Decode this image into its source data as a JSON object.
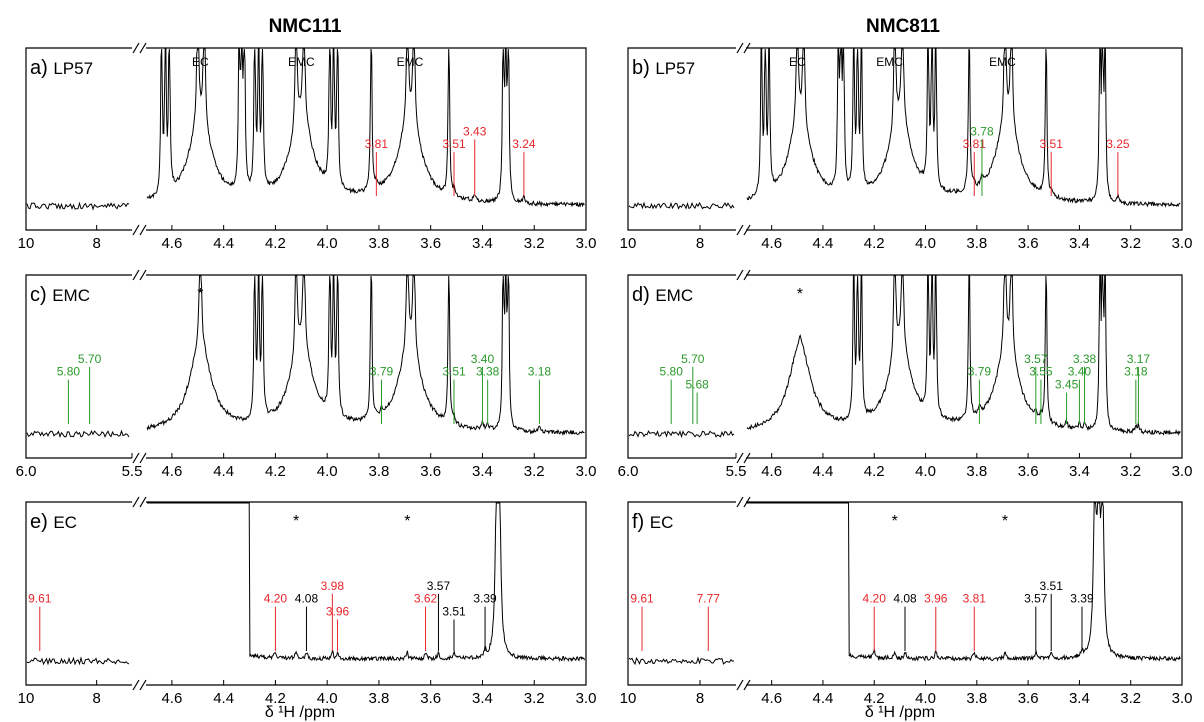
{
  "figure": {
    "columns": [
      "NMC111",
      "NMC811"
    ],
    "x_axis_title": "δ ¹H /ppm"
  },
  "colors": {
    "red": "#e8262b",
    "green": "#2a9a2a",
    "black": "#000000"
  },
  "chart_data": [
    {
      "id": "a",
      "panel_label": "a)",
      "sample": "LP57",
      "column": "NMC111",
      "type": "line",
      "x_left": {
        "range": [
          10,
          7
        ],
        "ticks": [
          "10",
          "8"
        ]
      },
      "x_right": {
        "range": [
          4.7,
          3.0
        ],
        "ticks": [
          "4.6",
          "4.4",
          "4.2",
          "4.0",
          "3.8",
          "3.6",
          "3.4",
          "3.2",
          "3.0"
        ]
      },
      "y": "intensity (clipped)",
      "big_peaks": [
        4.64,
        4.625,
        4.61,
        4.5,
        4.475,
        4.34,
        4.33,
        4.32,
        4.28,
        4.265,
        4.25,
        4.12,
        4.09,
        3.99,
        3.975,
        3.96,
        3.83,
        3.69,
        3.665,
        3.53,
        3.32,
        3.31,
        3.3
      ],
      "solvent_labels": [
        {
          "text": "EC",
          "x": 4.49
        },
        {
          "text": "EMC",
          "x": 4.1
        },
        {
          "text": "EMC",
          "x": 3.68
        }
      ],
      "peak_labels": [
        {
          "text": "3.81",
          "x": 3.81,
          "color": "red"
        },
        {
          "text": "3.51",
          "x": 3.51,
          "color": "red"
        },
        {
          "text": "3.43",
          "x": 3.43,
          "color": "red"
        },
        {
          "text": "3.24",
          "x": 3.24,
          "color": "red"
        }
      ],
      "stars": []
    },
    {
      "id": "b",
      "panel_label": "b)",
      "sample": "LP57",
      "column": "NMC811",
      "type": "line",
      "x_left": {
        "range": [
          10,
          7
        ],
        "ticks": [
          "10",
          "8"
        ]
      },
      "x_right": {
        "range": [
          4.7,
          3.0
        ],
        "ticks": [
          "4.6",
          "4.4",
          "4.2",
          "4.0",
          "3.8",
          "3.6",
          "3.4",
          "3.2",
          "3.0"
        ]
      },
      "y": "intensity (clipped)",
      "big_peaks": [
        4.64,
        4.625,
        4.61,
        4.5,
        4.475,
        4.34,
        4.33,
        4.32,
        4.28,
        4.265,
        4.25,
        4.12,
        4.09,
        3.99,
        3.975,
        3.96,
        3.83,
        3.69,
        3.665,
        3.53,
        3.32,
        3.31,
        3.3
      ],
      "solvent_labels": [
        {
          "text": "EC",
          "x": 4.5
        },
        {
          "text": "EMC",
          "x": 4.14
        },
        {
          "text": "EMC",
          "x": 3.7
        }
      ],
      "peak_labels": [
        {
          "text": "3.81",
          "x": 3.81,
          "color": "red"
        },
        {
          "text": "3.78",
          "x": 3.78,
          "color": "green"
        },
        {
          "text": "3.51",
          "x": 3.51,
          "color": "red"
        },
        {
          "text": "3.25",
          "x": 3.25,
          "color": "red"
        }
      ],
      "stars": []
    },
    {
      "id": "c",
      "panel_label": "c)",
      "sample": "EMC",
      "column": "NMC111",
      "type": "line",
      "x_left": {
        "range": [
          6.0,
          5.5
        ],
        "ticks": [
          "6.0",
          "5.5"
        ]
      },
      "x_right": {
        "range": [
          4.7,
          3.0
        ],
        "ticks": [
          "4.6",
          "4.4",
          "4.2",
          "4.0",
          "3.8",
          "3.6",
          "3.4",
          "3.2",
          "3.0"
        ]
      },
      "y": "intensity (clipped)",
      "big_peaks": [
        4.49,
        4.28,
        4.265,
        4.25,
        4.12,
        4.09,
        3.99,
        3.975,
        3.96,
        3.83,
        3.69,
        3.665,
        3.53,
        3.32,
        3.31,
        3.3
      ],
      "solvent_labels": [],
      "peak_labels": [
        {
          "text": "5.80",
          "x": 5.8,
          "color": "green"
        },
        {
          "text": "5.70",
          "x": 5.7,
          "color": "green"
        },
        {
          "text": "3.79",
          "x": 3.79,
          "color": "green"
        },
        {
          "text": "3.51",
          "x": 3.51,
          "color": "green"
        },
        {
          "text": "3.38",
          "x": 3.38,
          "color": "green"
        },
        {
          "text": "3.40",
          "x": 3.4,
          "color": "green"
        },
        {
          "text": "3.18",
          "x": 3.18,
          "color": "green"
        }
      ],
      "stars": [
        {
          "text": "*",
          "x": 4.49
        }
      ]
    },
    {
      "id": "d",
      "panel_label": "d)",
      "sample": "EMC",
      "column": "NMC811",
      "type": "line",
      "x_left": {
        "range": [
          6.0,
          5.5
        ],
        "ticks": [
          "6.0",
          "5.5"
        ]
      },
      "x_right": {
        "range": [
          4.7,
          3.0
        ],
        "ticks": [
          "4.6",
          "4.4",
          "4.2",
          "4.0",
          "3.8",
          "3.6",
          "3.4",
          "3.2",
          "3.0"
        ]
      },
      "y": "intensity (clipped)",
      "big_peaks": [
        4.28,
        4.265,
        4.25,
        4.12,
        4.09,
        3.99,
        3.975,
        3.96,
        3.83,
        3.69,
        3.665,
        3.53,
        3.32,
        3.31,
        3.3
      ],
      "solvent_labels": [],
      "peak_labels": [
        {
          "text": "5.80",
          "x": 5.8,
          "color": "green"
        },
        {
          "text": "5.70",
          "x": 5.7,
          "color": "green"
        },
        {
          "text": "5.68",
          "x": 5.68,
          "color": "green"
        },
        {
          "text": "3.79",
          "x": 3.79,
          "color": "green"
        },
        {
          "text": "3.55",
          "x": 3.55,
          "color": "green"
        },
        {
          "text": "3.57",
          "x": 3.57,
          "color": "green"
        },
        {
          "text": "3.40",
          "x": 3.4,
          "color": "green"
        },
        {
          "text": "3.38",
          "x": 3.38,
          "color": "green"
        },
        {
          "text": "3.45",
          "x": 3.45,
          "color": "green"
        },
        {
          "text": "3.18",
          "x": 3.18,
          "color": "green"
        },
        {
          "text": "3.17",
          "x": 3.17,
          "color": "green"
        }
      ],
      "stars": [
        {
          "text": "*",
          "x": 4.49
        }
      ]
    },
    {
      "id": "e",
      "panel_label": "e)",
      "sample": "EC",
      "column": "NMC111",
      "type": "line",
      "x_left": {
        "range": [
          10,
          7
        ],
        "ticks": [
          "10",
          "8"
        ]
      },
      "x_right": {
        "range": [
          4.7,
          3.0
        ],
        "ticks": [
          "4.6",
          "4.4",
          "4.2",
          "4.0",
          "3.8",
          "3.6",
          "3.4",
          "3.2",
          "3.0"
        ]
      },
      "y": "intensity (clipped)",
      "big_peaks": [
        3.345,
        3.335
      ],
      "solvent_labels": [],
      "peak_labels": [
        {
          "text": "9.61",
          "x": 9.61,
          "color": "red"
        },
        {
          "text": "4.20",
          "x": 4.2,
          "color": "red"
        },
        {
          "text": "4.08",
          "x": 4.08,
          "color": "black"
        },
        {
          "text": "3.98",
          "x": 3.98,
          "color": "red"
        },
        {
          "text": "3.96",
          "x": 3.96,
          "color": "red"
        },
        {
          "text": "3.62",
          "x": 3.62,
          "color": "red"
        },
        {
          "text": "3.57",
          "x": 3.57,
          "color": "black"
        },
        {
          "text": "3.51",
          "x": 3.51,
          "color": "black"
        },
        {
          "text": "3.39",
          "x": 3.39,
          "color": "black"
        }
      ],
      "stars": [
        {
          "text": "*",
          "x": 4.12
        },
        {
          "text": "*",
          "x": 3.69
        }
      ]
    },
    {
      "id": "f",
      "panel_label": "f)",
      "sample": "EC",
      "column": "NMC811",
      "type": "line",
      "x_left": {
        "range": [
          10,
          7
        ],
        "ticks": [
          "10",
          "8"
        ]
      },
      "x_right": {
        "range": [
          4.7,
          3.0
        ],
        "ticks": [
          "4.6",
          "4.4",
          "4.2",
          "4.0",
          "3.8",
          "3.6",
          "3.4",
          "3.2",
          "3.0"
        ]
      },
      "y": "intensity (clipped)",
      "big_peaks": [
        3.34,
        3.325,
        3.31
      ],
      "solvent_labels": [],
      "peak_labels": [
        {
          "text": "9.61",
          "x": 9.61,
          "color": "red"
        },
        {
          "text": "7.77",
          "x": 7.77,
          "color": "red"
        },
        {
          "text": "4.20",
          "x": 4.2,
          "color": "red"
        },
        {
          "text": "4.08",
          "x": 4.08,
          "color": "black"
        },
        {
          "text": "3.96",
          "x": 3.96,
          "color": "red"
        },
        {
          "text": "3.81",
          "x": 3.81,
          "color": "red"
        },
        {
          "text": "3.57",
          "x": 3.57,
          "color": "black"
        },
        {
          "text": "3.51",
          "x": 3.51,
          "color": "black"
        },
        {
          "text": "3.39",
          "x": 3.39,
          "color": "black"
        }
      ],
      "stars": [
        {
          "text": "*",
          "x": 4.12
        },
        {
          "text": "*",
          "x": 3.69
        }
      ]
    }
  ]
}
